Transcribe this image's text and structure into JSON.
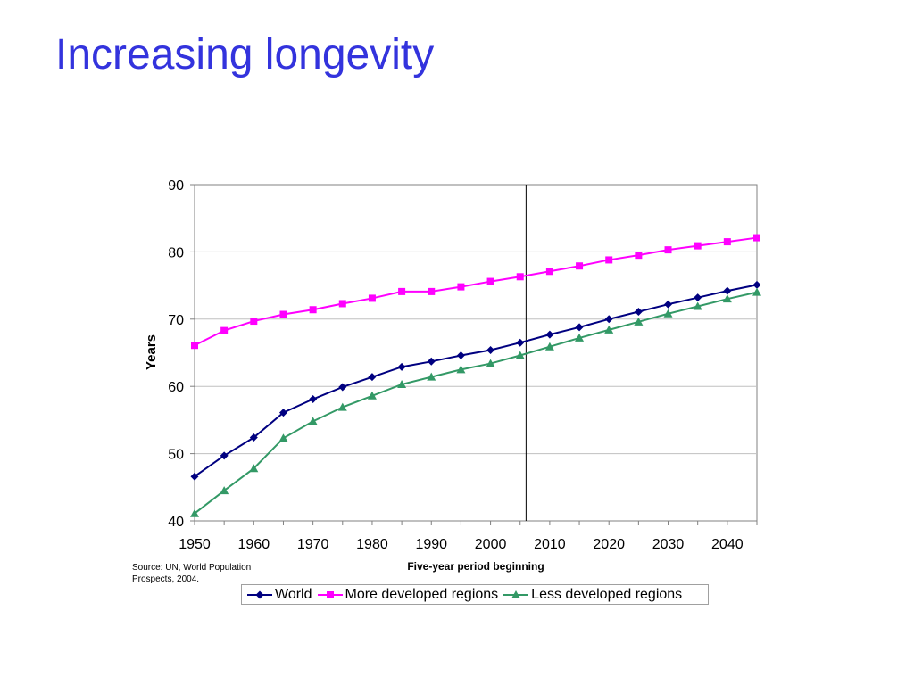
{
  "slide": {
    "title": "Increasing longevity",
    "source_note": "Source: UN, World Population Prospects, 2004."
  },
  "colors": {
    "title": "#3333dd",
    "world": "#000080",
    "more_developed": "#ff00ff",
    "less_developed": "#339966",
    "gridline": "#c0c0c0",
    "axis": "#808080",
    "divider": "#000000"
  },
  "chart_data": {
    "type": "line",
    "title": "",
    "xlabel": "Five-year period beginning",
    "ylabel": "Years",
    "ylim": [
      40,
      90
    ],
    "xlim": [
      1950,
      2045
    ],
    "yticks": [
      40,
      50,
      60,
      70,
      80,
      90
    ],
    "xticks": [
      1950,
      1960,
      1970,
      1980,
      1990,
      2000,
      2010,
      2020,
      2030,
      2040
    ],
    "grid": true,
    "legend_position": "bottom",
    "divider_x": 2006,
    "x": [
      1950,
      1955,
      1960,
      1965,
      1970,
      1975,
      1980,
      1985,
      1990,
      1995,
      2000,
      2005,
      2010,
      2015,
      2020,
      2025,
      2030,
      2035,
      2040,
      2045
    ],
    "series": [
      {
        "name": "World",
        "marker": "diamond",
        "color_key": "world",
        "values": [
          46.6,
          49.7,
          52.4,
          56.1,
          58.1,
          59.9,
          61.4,
          62.9,
          63.7,
          64.6,
          65.4,
          66.5,
          67.7,
          68.8,
          70.0,
          71.1,
          72.2,
          73.2,
          74.2,
          75.1
        ]
      },
      {
        "name": "More developed regions",
        "marker": "square",
        "color_key": "more_developed",
        "values": [
          66.1,
          68.3,
          69.7,
          70.7,
          71.4,
          72.3,
          73.1,
          74.1,
          74.1,
          74.8,
          75.6,
          76.3,
          77.1,
          77.9,
          78.8,
          79.5,
          80.3,
          80.9,
          81.5,
          82.1
        ]
      },
      {
        "name": "Less developed regions",
        "marker": "triangle",
        "color_key": "less_developed",
        "values": [
          41.1,
          44.5,
          47.8,
          52.3,
          54.8,
          56.9,
          58.6,
          60.3,
          61.4,
          62.5,
          63.4,
          64.6,
          65.9,
          67.2,
          68.4,
          69.6,
          70.8,
          71.9,
          73.0,
          74.0
        ]
      }
    ]
  }
}
